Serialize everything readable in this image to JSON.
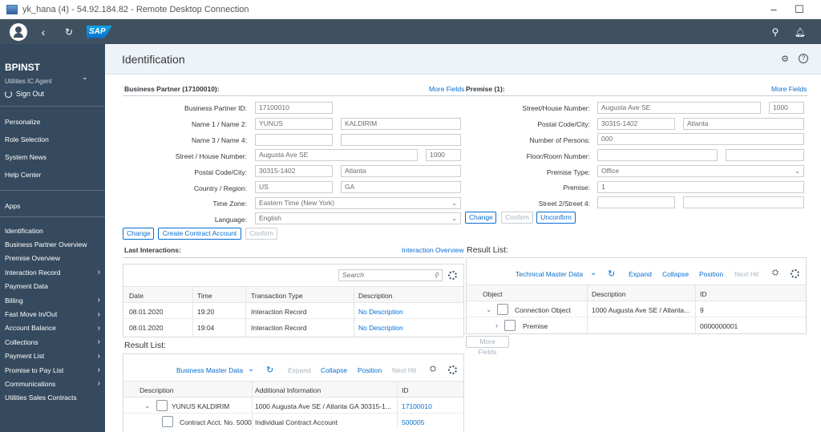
{
  "window": {
    "title": "yk_hana (4) - 54.92.184.82 - Remote Desktop Connection",
    "minimize": "–",
    "maximize": "☐"
  },
  "shell": {
    "logo": "SAP"
  },
  "sidebar": {
    "user": "BPINST",
    "role": "Utilities IC Agent",
    "sign_out": "Sign Out",
    "general": [
      "Personalize",
      "Role Selection",
      "System News",
      "Help Center"
    ],
    "apps_title": "Apps",
    "apps": [
      {
        "label": "Identification",
        "chevron": false
      },
      {
        "label": "Business Partner Overview",
        "chevron": false
      },
      {
        "label": "Premise Overview",
        "chevron": false
      },
      {
        "label": "Interaction Record",
        "chevron": true
      },
      {
        "label": "Payment Data",
        "chevron": false
      },
      {
        "label": "Billing",
        "chevron": true
      },
      {
        "label": "Fast Move In/Out",
        "chevron": true
      },
      {
        "label": "Account Balance",
        "chevron": true
      },
      {
        "label": "Collections",
        "chevron": true
      },
      {
        "label": "Payment List",
        "chevron": true
      },
      {
        "label": "Promise to Pay List",
        "chevron": true
      },
      {
        "label": "Communications",
        "chevron": true
      },
      {
        "label": "Utilities Sales Contracts",
        "chevron": false
      }
    ]
  },
  "page": {
    "title": "Identification"
  },
  "bp": {
    "section_title": "Business Partner (17100010):",
    "more_fields": "More Fields",
    "labels": {
      "id": "Business Partner ID:",
      "name12": "Name 1 / Name 2:",
      "name34": "Name 3 / Name 4:",
      "street": "Street / House Number:",
      "postal": "Postal Code/City:",
      "country": "Country / Region:",
      "tz": "Time Zone:",
      "lang": "Language:"
    },
    "values": {
      "id": "17100010",
      "name1": "YUNUS",
      "name2": "KALDIRIM",
      "name3": "",
      "name4": "",
      "street": "Augusta Ave SE",
      "house": "1000",
      "postal": "30315-1402",
      "city": "Atlanta",
      "country": "US",
      "region": "GA",
      "tz": "Eastern Time (New York)",
      "lang": "English"
    },
    "buttons": {
      "change": "Change",
      "create": "Create Contract Account",
      "confirm": "Confirm"
    }
  },
  "premise": {
    "section_title": "Premise (1):",
    "more_fields": "More Fields",
    "labels": {
      "street": "Street/House Number:",
      "postal": "Postal Code/City:",
      "persons": "Number of Persons:",
      "floor": "Floor/Room Number:",
      "type": "Premise Type:",
      "premise": "Premise:",
      "street24": "Street 2/Street 4:"
    },
    "values": {
      "street": "Augusta Ave SE",
      "house": "1000",
      "postal": "30315-1402",
      "city": "Atlanta",
      "persons": "000",
      "floor": "",
      "room": "",
      "type": "Office",
      "premise": "1",
      "street2": "",
      "street4": ""
    },
    "buttons": {
      "change": "Change",
      "confirm": "Confirm",
      "unconfirm": "Unconfirm"
    }
  },
  "last_interactions": {
    "title": "Last Interactions:",
    "overview_link": "Interaction Overview",
    "search_placeholder": "Search",
    "columns": [
      "Date",
      "Time",
      "Transaction Type",
      "Description"
    ],
    "rows": [
      {
        "date": "08.01.2020",
        "time": "19:20",
        "type": "Interaction  Record",
        "desc": "No Description"
      },
      {
        "date": "08.01.2020",
        "time": "19:04",
        "type": "Interaction  Record",
        "desc": "No Description"
      }
    ]
  },
  "bp_results": {
    "title": "Result List:",
    "dropdown": "Business Master Data",
    "expand": "Expand",
    "collapse": "Collapse",
    "position": "Position",
    "next_hit": "Next Hit",
    "columns": [
      "Description",
      "Additional Information",
      "ID"
    ],
    "rows": [
      {
        "desc": "YUNUS KALDIRIM",
        "info": "1000 Augusta Ave SE / Atlanta GA 30315-1...",
        "id": "17100010"
      },
      {
        "desc": "Contract Acct. No. 5000",
        "info": "Individual Contract Account",
        "id": "500005"
      }
    ]
  },
  "premise_results": {
    "title": "Result List:",
    "dropdown": "Technical Master Data",
    "expand": "Expand",
    "collapse": "Collapse",
    "position": "Position",
    "next_hit": "Next Hit",
    "more_fields": "More Fields",
    "columns": [
      "Object",
      "Description",
      "ID"
    ],
    "rows": [
      {
        "object": "Connection Object",
        "desc": "1000 Augusta Ave SE / Atlanta...",
        "id": "9"
      },
      {
        "object": "Premise",
        "desc": "",
        "id": "0000000001"
      }
    ]
  }
}
